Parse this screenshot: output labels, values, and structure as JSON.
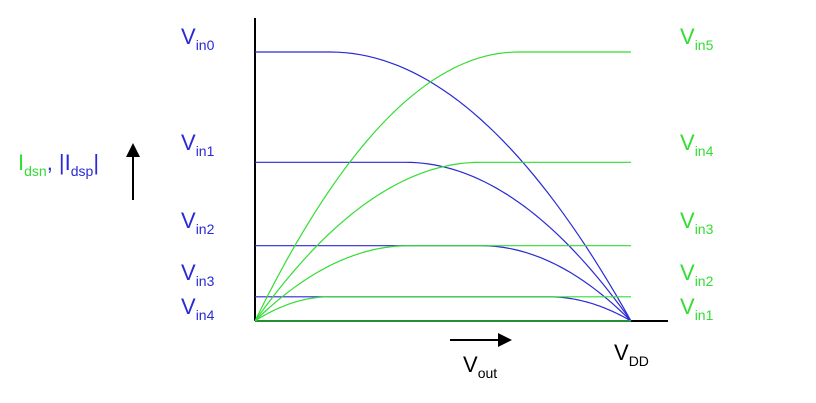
{
  "colors": {
    "nmos": "#2a2ad6",
    "pmos": "#33dd33",
    "axis": "#000000",
    "label_green": "#33dd33",
    "label_blue": "#2a2ad6"
  },
  "y_axis_label": {
    "part1_main": "I",
    "part1_sub": "dsn",
    "separator": ", |I",
    "part2_sub": "dsp",
    "closing": "|",
    "arrow_icon": "up-arrow-icon"
  },
  "x_axis_label": {
    "main": "V",
    "sub": "out",
    "arrow_icon": "right-arrow-icon"
  },
  "vdd_label": {
    "main": "V",
    "sub": "DD"
  },
  "left_labels": [
    {
      "main": "V",
      "sub": "in0"
    },
    {
      "main": "V",
      "sub": "in1"
    },
    {
      "main": "V",
      "sub": "in2"
    },
    {
      "main": "V",
      "sub": "in3"
    },
    {
      "main": "V",
      "sub": "in4"
    }
  ],
  "right_labels": [
    {
      "main": "V",
      "sub": "in5"
    },
    {
      "main": "V",
      "sub": "in4"
    },
    {
      "main": "V",
      "sub": "in3"
    },
    {
      "main": "V",
      "sub": "in2"
    },
    {
      "main": "V",
      "sub": "in1"
    }
  ],
  "chart_data": {
    "type": "line",
    "x_range": [
      0,
      1
    ],
    "current_levels": [
      1.0,
      0.59,
      0.28,
      0.09,
      0.0
    ],
    "nmos_series": [
      {
        "name": "Vin0",
        "saturation_current": 1.0,
        "knee": 0.2
      },
      {
        "name": "Vin1",
        "saturation_current": 0.59,
        "knee": 0.4
      },
      {
        "name": "Vin2",
        "saturation_current": 0.28,
        "knee": 0.6
      },
      {
        "name": "Vin3",
        "saturation_current": 0.09,
        "knee": 0.78
      },
      {
        "name": "Vin4",
        "saturation_current": 0.0,
        "knee": 1.0
      }
    ],
    "pmos_series": [
      {
        "name": "Vin5",
        "saturation_current": 1.0,
        "knee": 0.7
      },
      {
        "name": "Vin4",
        "saturation_current": 0.59,
        "knee": 0.6
      },
      {
        "name": "Vin3",
        "saturation_current": 0.28,
        "knee": 0.41
      },
      {
        "name": "Vin2",
        "saturation_current": 0.09,
        "knee": 0.2
      },
      {
        "name": "Vin1",
        "saturation_current": 0.0,
        "knee": 0.0
      }
    ]
  }
}
